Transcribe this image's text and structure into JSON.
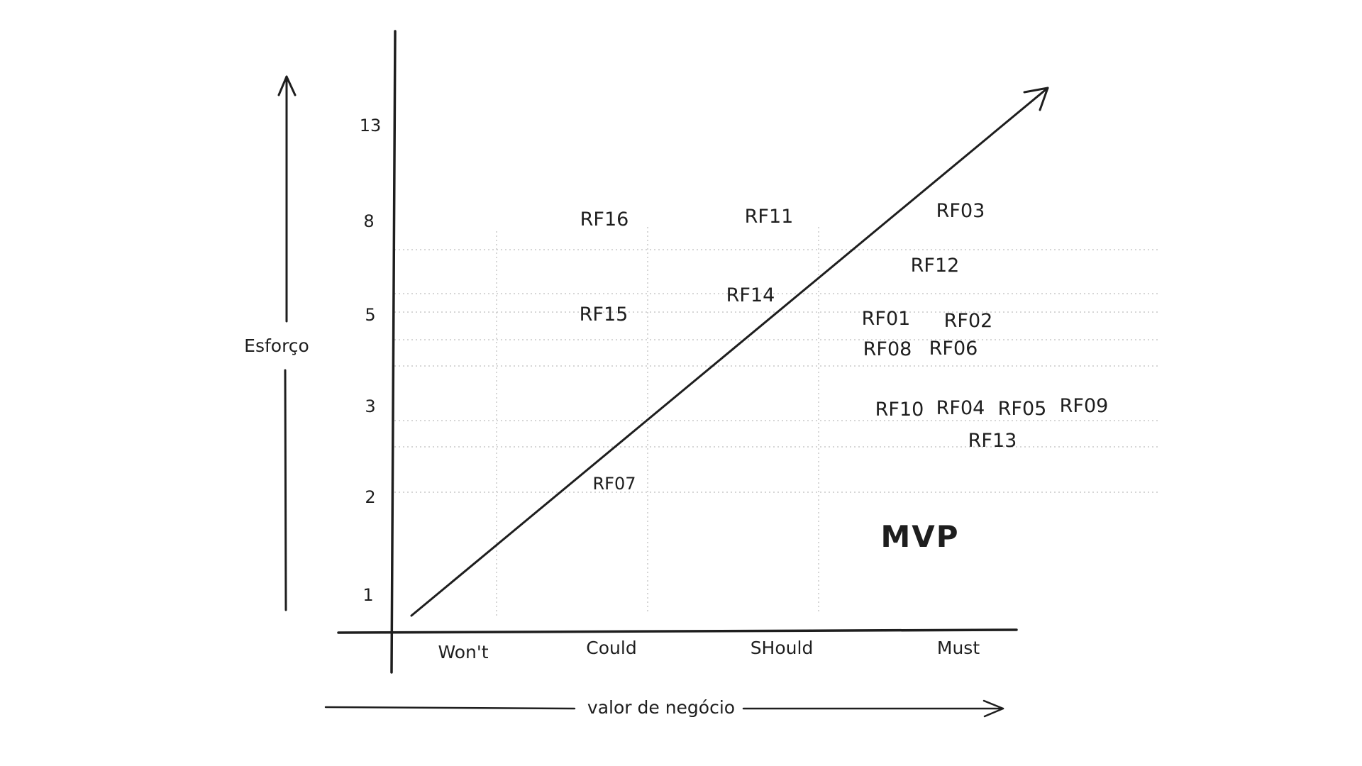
{
  "diagram": {
    "y_axis_title": "Esforço",
    "x_axis_title": "valor de negócio",
    "y_ticks": [
      "13",
      "8",
      "5",
      "3",
      "2",
      "1"
    ],
    "x_categories": [
      "Won't",
      "Could",
      "SHould",
      "Must"
    ],
    "region_label": "MVP",
    "requirements": [
      {
        "id": "RF16",
        "label": "RF16"
      },
      {
        "id": "RF11",
        "label": "RF11"
      },
      {
        "id": "RF03",
        "label": "RF03"
      },
      {
        "id": "RF12",
        "label": "RF12"
      },
      {
        "id": "RF14",
        "label": "RF14"
      },
      {
        "id": "RF15",
        "label": "RF15"
      },
      {
        "id": "RF01",
        "label": "RF01"
      },
      {
        "id": "RF02",
        "label": "RF02"
      },
      {
        "id": "RF08",
        "label": "RF08"
      },
      {
        "id": "RF06",
        "label": "RF06"
      },
      {
        "id": "RF10",
        "label": "RF10"
      },
      {
        "id": "RF04",
        "label": "RF04"
      },
      {
        "id": "RF05",
        "label": "RF05"
      },
      {
        "id": "RF09",
        "label": "RF09"
      },
      {
        "id": "RF13",
        "label": "RF13"
      },
      {
        "id": "RF07",
        "label": "RF07"
      }
    ]
  }
}
